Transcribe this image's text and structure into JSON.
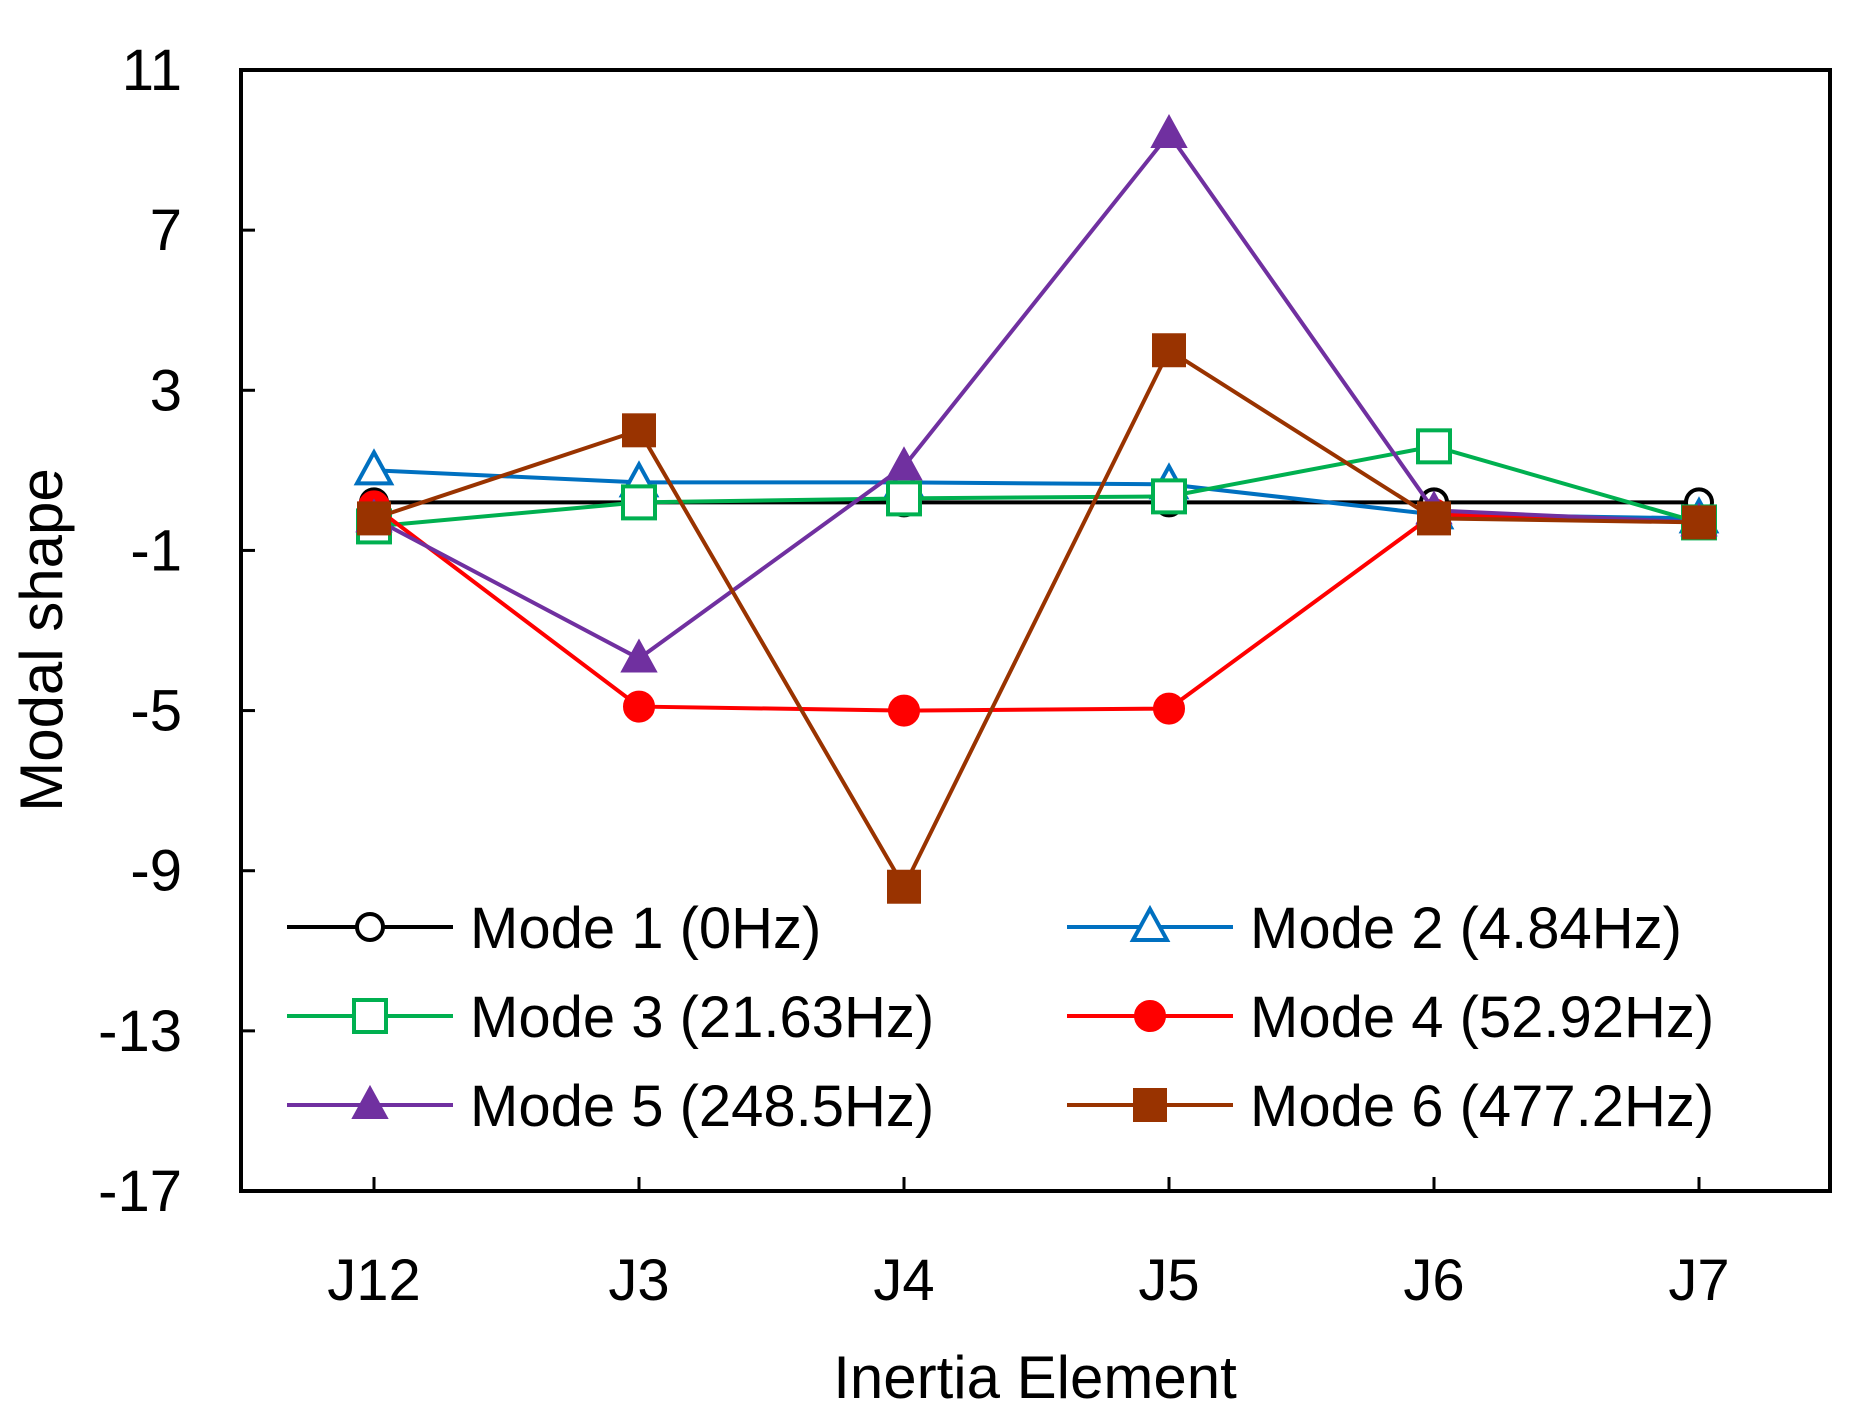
{
  "chart_data": {
    "type": "line",
    "title": "",
    "xlabel": "Inertia Element",
    "ylabel": "Modal shape",
    "categories": [
      "J12",
      "J3",
      "J4",
      "J5",
      "J6",
      "J7"
    ],
    "ylim": [
      -17,
      11
    ],
    "yticks": [
      "11",
      "7",
      "3",
      "-1",
      "-5",
      "-9",
      "-13",
      "-17"
    ],
    "grid": false,
    "legend_position": "bottom",
    "series": [
      {
        "name": "Mode 1 (0Hz)",
        "color": "#000000",
        "marker": "circle-open",
        "values": [
          0.2,
          0.2,
          0.2,
          0.2,
          0.2,
          0.2
        ]
      },
      {
        "name": "Mode 2 (4.84Hz)",
        "color": "#0070C0",
        "marker": "triangle-open",
        "values": [
          1.0,
          0.7,
          0.7,
          0.65,
          -0.1,
          -0.2
        ]
      },
      {
        "name": "Mode 3 (21.63Hz)",
        "color": "#00B050",
        "marker": "square-open",
        "values": [
          -0.4,
          0.2,
          0.3,
          0.35,
          1.6,
          -0.3
        ]
      },
      {
        "name": "Mode 4 (52.92Hz)",
        "color": "#FF0000",
        "marker": "circle-filled",
        "values": [
          0.1,
          -4.9,
          -5.0,
          -4.95,
          -0.1,
          -0.3
        ]
      },
      {
        "name": "Mode 5 (248.5Hz)",
        "color": "#7030A0",
        "marker": "triangle-filled",
        "values": [
          -0.2,
          -3.7,
          1.1,
          9.4,
          0.0,
          -0.3
        ]
      },
      {
        "name": "Mode 6 (477.2Hz)",
        "color": "#993300",
        "marker": "square-filled",
        "values": [
          -0.2,
          2.0,
          -9.4,
          4.0,
          -0.2,
          -0.3
        ]
      }
    ]
  }
}
